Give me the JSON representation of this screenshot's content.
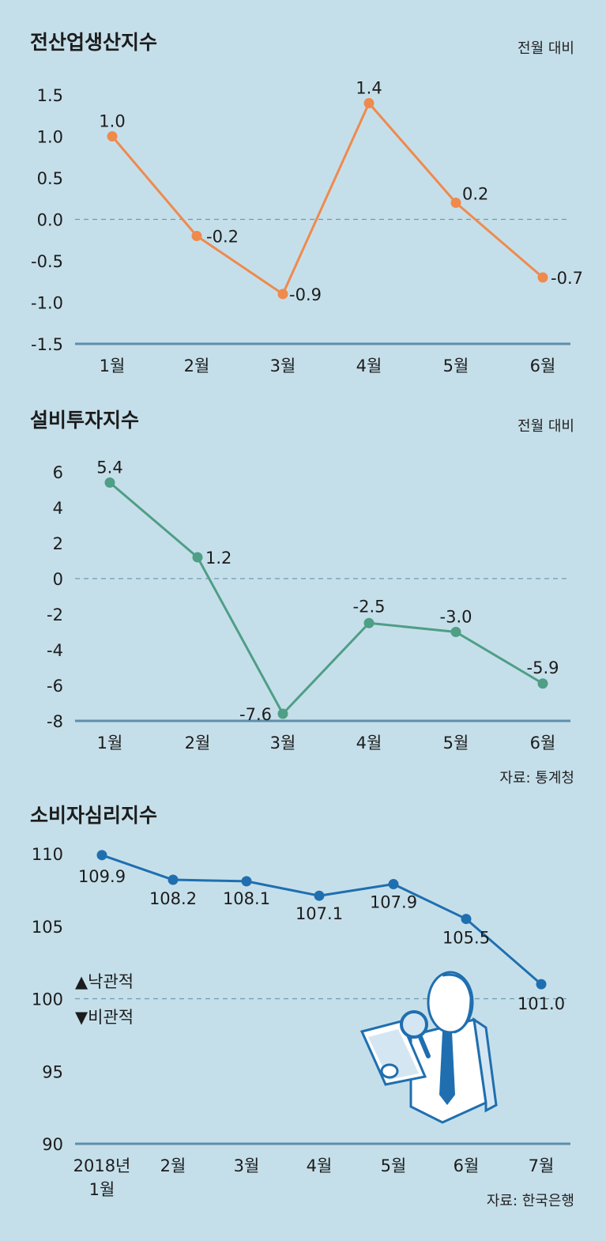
{
  "colors": {
    "background": "#c5dfea",
    "axis": "#5e8ea9",
    "zero_line": "#6f9ab0",
    "optimistic": "#1f6fb0",
    "pessimistic": "#c0282e"
  },
  "chart_data": [
    {
      "type": "line",
      "title": "전산업생산지수",
      "unit": "전월 대비",
      "categories": [
        "1월",
        "2월",
        "3월",
        "4월",
        "5월",
        "6월"
      ],
      "values": [
        1.0,
        -0.2,
        -0.9,
        1.4,
        0.2,
        -0.7
      ],
      "value_labels": [
        "1.0",
        "-0.2",
        "-0.9",
        "1.4",
        "0.2",
        "-0.7"
      ],
      "ylim": [
        -1.5,
        1.5
      ],
      "yticks": [
        1.5,
        1.0,
        0.5,
        0.0,
        -0.5,
        -1.0,
        -1.5
      ],
      "ytick_labels": [
        "1.5",
        "1.0",
        "0.5",
        "0.0",
        "-0.5",
        "-1.0",
        "-1.5"
      ],
      "color": "#ef8a4d",
      "reference_line": 0
    },
    {
      "type": "line",
      "title": "설비투자지수",
      "unit": "전월 대비",
      "categories": [
        "1월",
        "2월",
        "3월",
        "4월",
        "5월",
        "6월"
      ],
      "values": [
        5.4,
        1.2,
        -7.6,
        -2.5,
        -3.0,
        -5.9
      ],
      "value_labels": [
        "5.4",
        "1.2",
        "-7.6",
        "-2.5",
        "-3.0",
        "-5.9"
      ],
      "ylim": [
        -8,
        6
      ],
      "yticks": [
        6,
        4,
        2,
        0,
        -2,
        -4,
        -6,
        -8
      ],
      "ytick_labels": [
        "6",
        "4",
        "2",
        "0",
        "-2",
        "-4",
        "-6",
        "-8"
      ],
      "color": "#4f9e86",
      "reference_line": 0,
      "source": "자료: 통계청"
    },
    {
      "type": "line",
      "title": "소비자심리지수",
      "categories": [
        "2018년\n1월",
        "2월",
        "3월",
        "4월",
        "5월",
        "6월",
        "7월"
      ],
      "values": [
        109.9,
        108.2,
        108.1,
        107.1,
        107.9,
        105.5,
        101.0
      ],
      "value_labels": [
        "109.9",
        "108.2",
        "108.1",
        "107.1",
        "107.9",
        "105.5",
        "101.0"
      ],
      "ylim": [
        90,
        110
      ],
      "yticks": [
        110,
        105,
        100,
        95,
        90
      ],
      "ytick_labels": [
        "110",
        "105",
        "100",
        "95",
        "90"
      ],
      "color": "#1f6fb0",
      "reference_line": 100,
      "legend": {
        "above": "▲낙관적",
        "below": "▼비관적"
      },
      "source": "자료: 한국은행"
    }
  ]
}
